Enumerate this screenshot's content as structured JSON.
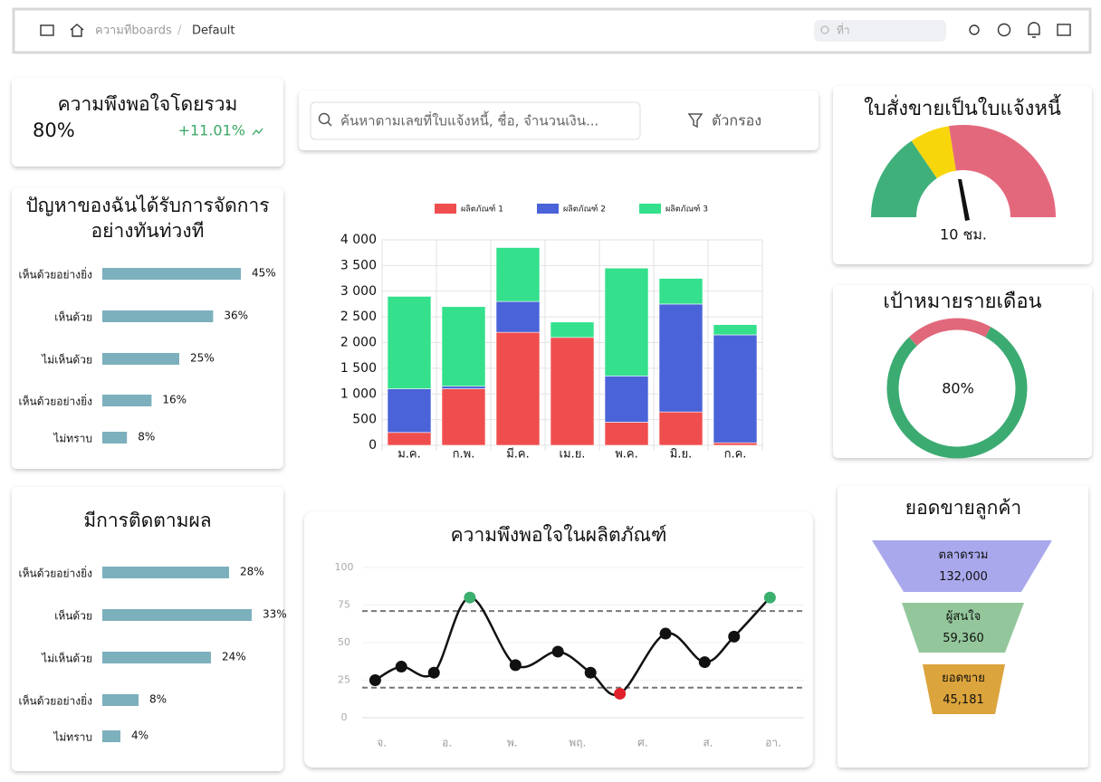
{
  "header": {
    "breadcrumb": [
      "ความทีboards",
      "Default"
    ],
    "search_placeholder": "ที่า"
  },
  "kpi": {
    "title": "ความพึงพอใจโดยรวม",
    "value": "80%",
    "change": "+11.01%"
  },
  "search": {
    "placeholder": "ค้นหาตามเลขที่ใบแจ้งหนี้, ชื่อ, จำนวนเงิน...",
    "filter": "ตัวกรอง"
  },
  "chart_data": [
    {
      "type": "hbar",
      "title_lines": [
        "ปัญหาของฉันได้รับการจัดการ",
        "อย่างทันท่วงที"
      ],
      "categories": [
        "เห็นด้วยอย่างยิ่ง",
        "เห็นด้วย",
        "ไม่เห็นด้วย",
        "เห็นด้วยอย่างยิ่ง",
        "ไม่ทราบ"
      ],
      "values": [
        45,
        36,
        25,
        16,
        8
      ],
      "value_labels": [
        "45%",
        "36%",
        "25%",
        "16%",
        "8%"
      ],
      "color": "#7db0bd"
    },
    {
      "type": "hbar",
      "title_lines": [
        "มีการติดตามผล"
      ],
      "categories": [
        "เห็นด้วยอย่างยิ่ง",
        "เห็นด้วย",
        "ไม่เห็นด้วย",
        "เห็นด้วยอย่างยิ่ง",
        "ไม่ทราบ"
      ],
      "values": [
        28,
        33,
        24,
        8,
        4
      ],
      "value_labels": [
        "28%",
        "33%",
        "24%",
        "8%",
        "4%"
      ],
      "color": "#7db0bd"
    },
    {
      "type": "stacked_bar",
      "categories": [
        "ม.ค.",
        "ก.พ.",
        "มี.ค.",
        "เม.ย.",
        "พ.ค.",
        "มิ.ย.",
        "ก.ค."
      ],
      "series": [
        {
          "name": "ผลิตภัณฑ์ 1",
          "color": "#f04e4e",
          "values": [
            250,
            1100,
            2200,
            2100,
            450,
            650,
            50
          ]
        },
        {
          "name": "ผลิตภัณฑ์ 2",
          "color": "#4a63d8",
          "values": [
            850,
            50,
            600,
            0,
            900,
            2100,
            2100
          ]
        },
        {
          "name": "ผลิตภัณฑ์ 3",
          "color": "#34e08c",
          "values": [
            1800,
            1550,
            1050,
            300,
            2100,
            500,
            200
          ]
        }
      ],
      "ylim": [
        0,
        4000
      ],
      "yticks": [
        0,
        500,
        {
          "value": 1000,
          "label": "1 000"
        },
        {
          "value": 1500,
          "label": "1 500"
        },
        {
          "value": 2000,
          "label": "2 000"
        },
        {
          "value": 2500,
          "label": "2 500"
        },
        {
          "value": 3000,
          "label": "3 000"
        },
        {
          "value": 3500,
          "label": "3 500"
        },
        {
          "value": 4000,
          "label": "4 000"
        }
      ],
      "grid": true
    },
    {
      "type": "gauge",
      "title": "ใบสั่งขายเป็นใบแจ้งหนี้",
      "label": "10 ชม.",
      "colors": [
        "#3fb07a",
        "#f8d60c",
        "#e4687c"
      ]
    },
    {
      "type": "donut",
      "title": "เป้าหมายรายเดือน",
      "value": 80,
      "value_label": "80%",
      "range": [
        0,
        100
      ],
      "colors": [
        "#3cab72",
        "#e0687a"
      ]
    },
    {
      "type": "line",
      "title": "ความพึงพอใจในผลิตภัณฑ์",
      "x": [
        -0.1,
        0.3,
        0.8,
        1.35,
        2.05,
        2.7,
        3.2,
        3.65,
        4.35,
        4.95,
        5.4,
        5.95
      ],
      "values": [
        25,
        34,
        30,
        80,
        35,
        44,
        30,
        16,
        56,
        37,
        54,
        80
      ],
      "xlim": [
        -0.3,
        6.5
      ],
      "xticks": [
        {
          "value": 0,
          "label": "จ."
        },
        {
          "value": 1,
          "label": "อ."
        },
        {
          "value": 2,
          "label": "พ."
        },
        {
          "value": 3,
          "label": "พฤ."
        },
        {
          "value": 4,
          "label": "ศ."
        },
        {
          "value": 5,
          "label": "ส."
        },
        {
          "value": 6,
          "label": "อา."
        }
      ],
      "ylim": [
        0,
        100
      ],
      "yticks": [
        0,
        25,
        50,
        75,
        100
      ],
      "reference_lines": [
        71,
        20
      ],
      "color": "#111111",
      "max_color": "#3aaf6e",
      "min_color": "#e0202a",
      "grid": true
    },
    {
      "type": "funnel",
      "title": "ยอดขายลูกค้า",
      "stages": [
        {
          "name": "ตลาดรวม",
          "value": "132,000",
          "color": "#aaa8ec"
        },
        {
          "name": "ผู้สนใจ",
          "value": "59,360",
          "color": "#93c79b"
        },
        {
          "name": "ยอดขาย",
          "value": "45,181",
          "color": "#dca43c"
        }
      ]
    }
  ]
}
